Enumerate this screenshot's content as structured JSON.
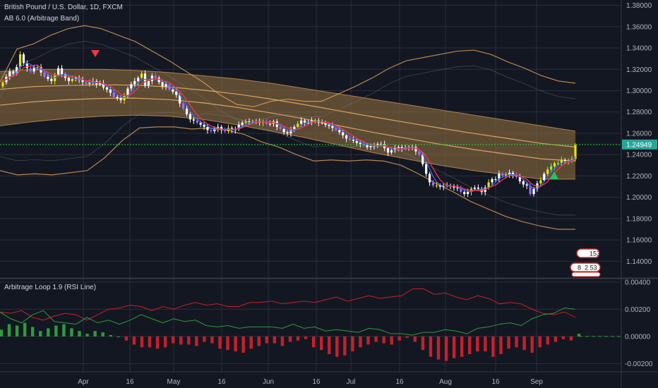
{
  "header": {
    "symbol_title": "British Pound / U.S. Dollar, 1D, FXCM",
    "band_indicator": "AB 6.0 (Arbitrage Band)",
    "lower_indicator": "Arbitrage Loop 1.9 (RSI Line)"
  },
  "colors": {
    "background": "#131722",
    "grid": "#2a2e39",
    "candle_up": "#ffffff",
    "candle_yellow": "#e6e600",
    "candle_green": "#76ff4a",
    "candle_purple": "#9c6cff",
    "band_fill": "#8a6a3e",
    "band_line": "#e0a25a",
    "ma_red": "#f23645",
    "ma_blue": "#2f6bff",
    "osc_red": "#c81f2a",
    "osc_green": "#2e9b3a",
    "price_line": "#26d13e",
    "price_badge": "#26a69a"
  },
  "badges": {
    "sell_marker": "sell-arrow-icon",
    "buy_marker": "buy-arrow-icon",
    "event_count_1": "153",
    "event_count_2_a": "8",
    "event_count_2_b": "2 53"
  },
  "chart_data": [
    {
      "type": "candlestick",
      "title": "British Pound / U.S. Dollar, 1D, FXCM",
      "ylim": [
        1.125,
        1.385
      ],
      "y_ticks": [
        "1.38000",
        "1.36000",
        "1.34000",
        "1.32000",
        "1.30000",
        "1.28000",
        "1.26000",
        "1.24000",
        "1.22000",
        "1.20000",
        "1.18000",
        "1.16000",
        "1.14000"
      ],
      "x_ticks": [
        "Apr",
        "16",
        "May",
        "16",
        "Jun",
        "16",
        "Jul",
        "16",
        "Aug",
        "16",
        "Sep"
      ],
      "last_price": "1.24949",
      "last_value": 1.2495,
      "grid": true,
      "series": [
        {
          "name": "Close",
          "values": [
            1.308,
            1.313,
            1.318,
            1.316,
            1.322,
            1.334,
            1.326,
            1.321,
            1.318,
            1.322,
            1.322,
            1.317,
            1.313,
            1.311,
            1.309,
            1.315,
            1.321,
            1.315,
            1.312,
            1.309,
            1.311,
            1.312,
            1.31,
            1.308,
            1.306,
            1.308,
            1.309,
            1.306,
            1.307,
            1.303,
            1.301,
            1.298,
            1.294,
            1.293,
            1.291,
            1.295,
            1.302,
            1.306,
            1.309,
            1.312,
            1.316,
            1.305,
            1.309,
            1.314,
            1.312,
            1.308,
            1.304,
            1.306,
            1.301,
            1.299,
            1.296,
            1.288,
            1.283,
            1.278,
            1.273,
            1.272,
            1.27,
            1.268,
            1.266,
            1.263,
            1.262,
            1.264,
            1.266,
            1.263,
            1.262,
            1.265,
            1.263,
            1.264,
            1.268,
            1.27,
            1.271,
            1.271,
            1.271,
            1.271,
            1.27,
            1.271,
            1.269,
            1.269,
            1.271,
            1.266,
            1.264,
            1.261,
            1.26,
            1.263,
            1.266,
            1.269,
            1.272,
            1.27,
            1.27,
            1.272,
            1.272,
            1.27,
            1.27,
            1.268,
            1.267,
            1.265,
            1.263,
            1.261,
            1.258,
            1.255,
            1.254,
            1.253,
            1.251,
            1.25,
            1.249,
            1.247,
            1.248,
            1.248,
            1.25,
            1.25,
            1.246,
            1.242,
            1.244,
            1.246,
            1.247,
            1.246,
            1.246,
            1.247,
            1.247,
            1.243,
            1.24,
            1.231,
            1.222,
            1.214,
            1.211,
            1.211,
            1.21,
            1.211,
            1.211,
            1.21,
            1.209,
            1.209,
            1.205,
            1.203,
            1.205,
            1.208,
            1.209,
            1.208,
            1.205,
            1.209,
            1.214,
            1.217,
            1.217,
            1.222,
            1.22,
            1.221,
            1.223,
            1.221,
            1.219,
            1.215,
            1.212,
            1.211,
            1.203,
            1.208,
            1.213,
            1.216,
            1.222,
            1.226,
            1.229,
            1.232,
            1.232,
            1.235,
            1.234,
            1.234,
            1.236,
            1.249
          ]
        },
        {
          "name": "Upper band",
          "values": [
            1.308,
            1.339,
            1.344,
            1.352,
            1.358,
            1.361,
            1.358,
            1.352,
            1.346,
            1.337,
            1.328,
            1.318,
            1.308,
            1.296,
            1.287,
            1.285,
            1.29,
            1.292,
            1.29,
            1.29,
            1.297,
            1.304,
            1.312,
            1.321,
            1.328,
            1.331,
            1.334,
            1.337,
            1.338,
            1.334,
            1.327,
            1.321,
            1.314,
            1.309,
            1.307
          ]
        },
        {
          "name": "Band top",
          "values": [
            1.318,
            1.32,
            1.32,
            1.32,
            1.319,
            1.317,
            1.314,
            1.311,
            1.307,
            1.302,
            1.297,
            1.292,
            1.287,
            1.282,
            1.277,
            1.272,
            1.267,
            1.262
          ]
        },
        {
          "name": "Band bottom",
          "values": [
            1.267,
            1.271,
            1.274,
            1.276,
            1.277,
            1.276,
            1.273,
            1.268,
            1.262,
            1.256,
            1.249,
            1.242,
            1.236,
            1.23,
            1.225,
            1.221,
            1.217,
            1.217
          ]
        },
        {
          "name": "Lower band",
          "values": [
            1.225,
            1.221,
            1.222,
            1.221,
            1.223,
            1.225,
            1.237,
            1.253,
            1.265,
            1.266,
            1.266,
            1.264,
            1.265,
            1.263,
            1.259,
            1.252,
            1.247,
            1.24,
            1.234,
            1.235,
            1.234,
            1.235,
            1.234,
            1.23,
            1.222,
            1.213,
            1.205,
            1.196,
            1.189,
            1.182,
            1.177,
            1.173,
            1.17,
            1.17
          ]
        }
      ]
    },
    {
      "type": "line",
      "title": "Arbitrage Loop 1.9 (RSI Line)",
      "ylim": [
        -0.0026,
        0.0042
      ],
      "y_ticks": [
        "0.00400",
        "0.00200",
        "0.00000",
        "-0.00200"
      ],
      "last_value_red": 0.0014,
      "series": [
        {
          "name": "Red line",
          "values": [
            0.0018,
            0.0017,
            0.0019,
            0.0014,
            0.0012,
            0.0015,
            0.0017,
            0.0016,
            0.0012,
            0.0016,
            0.002,
            0.0021,
            0.0023,
            0.0022,
            0.0019,
            0.0022,
            0.002,
            0.0023,
            0.0025,
            0.0023,
            0.0024,
            0.0022,
            0.0022,
            0.0025,
            0.0025,
            0.0026,
            0.0024,
            0.0025,
            0.0026,
            0.0025,
            0.0027,
            0.0029,
            0.0026,
            0.0028,
            0.003,
            0.0028,
            0.0029,
            0.003,
            0.0035,
            0.0035,
            0.0031,
            0.0032,
            0.0029,
            0.0027,
            0.003,
            0.0028,
            0.0024,
            0.0025,
            0.0024,
            0.002,
            0.0017,
            0.0016,
            0.0018,
            0.0014
          ]
        },
        {
          "name": "Green line",
          "values": [
            0.0018,
            0.0013,
            0.001,
            0.0016,
            0.0019,
            0.0011,
            0.001,
            0.0009,
            0.0014,
            0.001,
            0.0012,
            0.0009,
            0.0012,
            0.0016,
            0.0013,
            0.001,
            0.0013,
            0.0011,
            0.0012,
            0.0008,
            0.0007,
            0.0008,
            0.0006,
            0.0007,
            0.0007,
            0.0007,
            0.0006,
            0.0009,
            0.0006,
            0.0007,
            0.0004,
            0.0005,
            0.0004,
            0.0003,
            0.0006,
            0.0005,
            0.0002,
            0.0002,
            0.0001,
            0.0003,
            0.0003,
            0.0005,
            0.0004,
            0.0002,
            0.0006,
            0.0007,
            0.0009,
            0.001,
            0.0008,
            0.0013,
            0.0016,
            0.0017,
            0.0021,
            0.002
          ]
        },
        {
          "name": "Histogram",
          "values": [
            0.0005,
            0.0009,
            0.0008,
            0.001,
            0.0007,
            0.0004,
            0.0006,
            0.0008,
            0.0009,
            0.0006,
            0.0004,
            0.0002,
            0.0004,
            0.0003,
            0.0001,
            0.0,
            -0.0003,
            -0.0006,
            -0.0008,
            -0.0008,
            -0.0009,
            -0.0008,
            -0.0005,
            -0.0006,
            -0.0006,
            -0.0007,
            -0.0004,
            -0.0005,
            -0.0009,
            -0.001,
            -0.0011,
            -0.0012,
            -0.0009,
            -0.0007,
            -0.0005,
            -0.0005,
            -0.0007,
            -0.0004,
            -0.0003,
            -0.0002,
            -0.0008,
            -0.001,
            -0.0013,
            -0.0015,
            -0.0014,
            -0.0011,
            -0.0008,
            -0.0006,
            -0.0004,
            -0.0005,
            -0.0006,
            -0.0003,
            -0.0001,
            -0.0004,
            -0.001,
            -0.0015,
            -0.0017,
            -0.0018,
            -0.0016,
            -0.0015,
            -0.0013,
            -0.0011,
            -0.0011,
            -0.0015,
            -0.0013,
            -0.0009,
            -0.0008,
            -0.001,
            -0.0012,
            -0.0008,
            -0.0006,
            -0.0004,
            -0.0002,
            -0.0003,
            0.0002
          ]
        }
      ]
    }
  ]
}
